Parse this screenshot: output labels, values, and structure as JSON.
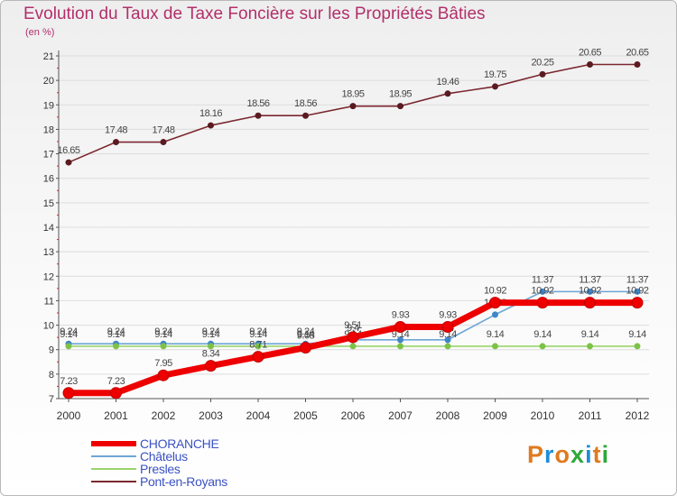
{
  "title": "Evolution du Taux de Taxe Foncière sur les Propriétés Bâties",
  "unit_label": "(en %)",
  "logo": {
    "letters": [
      "P",
      "r",
      "o",
      "x",
      "i",
      "t",
      "i"
    ],
    "colors": [
      "#e07a1f",
      "#1f8ed8",
      "#e07a1f",
      "#2ea83a",
      "#1f8ed8",
      "#e07a1f",
      "#2ea83a"
    ]
  },
  "chart_data": {
    "type": "line",
    "title": "Evolution du Taux de Taxe Foncière sur les Propriétés Bâties",
    "ylabel": "(en %)",
    "xlabel": "",
    "ylim": [
      7,
      21
    ],
    "yticks": [
      "7",
      "8",
      "9",
      "10",
      "11",
      "12",
      "13",
      "14",
      "15",
      "16",
      "17",
      "18",
      "19",
      "20",
      "21"
    ],
    "categories": [
      "2000",
      "2001",
      "2002",
      "2003",
      "2004",
      "2005",
      "2006",
      "2007",
      "2008",
      "2009",
      "2010",
      "2011",
      "2012"
    ],
    "series": [
      {
        "name": "Pont-en-Royans",
        "color": "#7b2730",
        "values": [
          16.65,
          17.48,
          17.48,
          18.16,
          18.56,
          18.56,
          18.95,
          18.95,
          19.46,
          19.75,
          20.25,
          20.65,
          20.65
        ],
        "labels": [
          "16.65",
          "17.48",
          "17.48",
          "18.16",
          "18.56",
          "18.56",
          "18.95",
          "18.95",
          "19.46",
          "19.75",
          "20.25",
          "20.65",
          "20.65"
        ]
      },
      {
        "name": "Châtelus",
        "color": "#6ea6d6",
        "values": [
          9.24,
          9.24,
          9.24,
          9.24,
          9.24,
          9.24,
          9.4,
          9.4,
          9.4,
          10.43,
          11.37,
          11.37,
          11.37
        ],
        "labels": [
          "9.24",
          "9.24",
          "9.24",
          "9.24",
          "9.24",
          "9.24",
          "9.4",
          "9.4",
          "9.4",
          "10.43",
          "11.37",
          "11.37",
          "11.37"
        ]
      },
      {
        "name": "Presles",
        "color": "#99d46a",
        "values": [
          9.14,
          9.14,
          9.14,
          9.14,
          9.14,
          9.14,
          9.14,
          9.14,
          9.14,
          9.14,
          9.14,
          9.14,
          9.14
        ],
        "labels": [
          "9.14",
          "9.14",
          "9.14",
          "9.14",
          "9.14",
          "9.14",
          "9.14",
          "9.14",
          "9.14",
          "9.14",
          "9.14",
          "9.14",
          "9.14"
        ]
      },
      {
        "name": "CHORANCHE",
        "color": "#ee0000",
        "values": [
          7.23,
          7.23,
          7.95,
          8.34,
          8.71,
          9.08,
          9.51,
          9.93,
          9.93,
          10.92,
          10.92,
          10.92,
          10.92
        ],
        "labels": [
          "7.23",
          "7.23",
          "7.95",
          "8.34",
          "8.71",
          "9.08",
          "9.51",
          "9.93",
          "9.93",
          "10.92",
          "10.92",
          "10.92",
          "10.92"
        ]
      }
    ],
    "legend": [
      "CHORANCHE",
      "Châtelus",
      "Presles",
      "Pont-en-Royans"
    ]
  }
}
